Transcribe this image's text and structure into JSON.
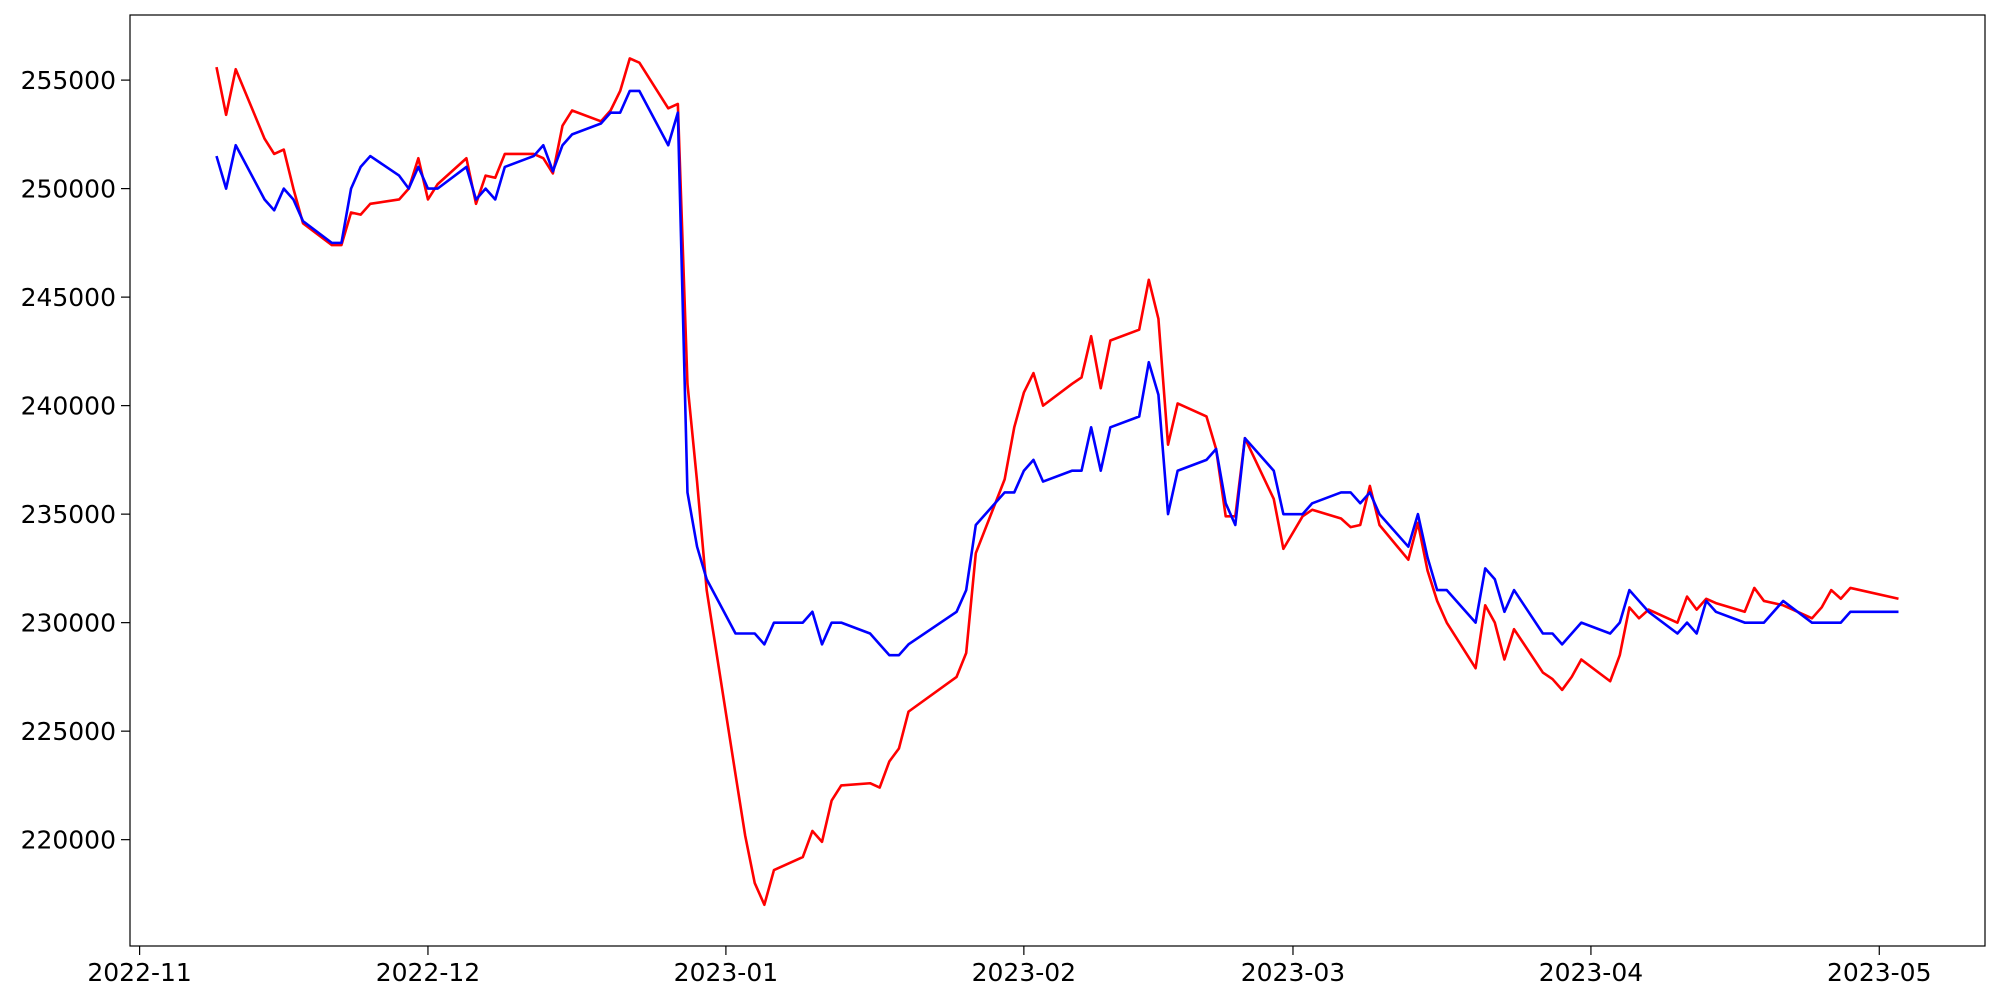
{
  "chart_data": {
    "type": "line",
    "x": [
      "2022-11-09",
      "2022-11-10",
      "2022-11-11",
      "2022-11-14",
      "2022-11-15",
      "2022-11-16",
      "2022-11-17",
      "2022-11-18",
      "2022-11-21",
      "2022-11-22",
      "2022-11-23",
      "2022-11-24",
      "2022-11-25",
      "2022-11-28",
      "2022-11-29",
      "2022-11-30",
      "2022-12-01",
      "2022-12-02",
      "2022-12-05",
      "2022-12-06",
      "2022-12-07",
      "2022-12-08",
      "2022-12-09",
      "2022-12-12",
      "2022-12-13",
      "2022-12-14",
      "2022-12-15",
      "2022-12-16",
      "2022-12-19",
      "2022-12-20",
      "2022-12-21",
      "2022-12-22",
      "2022-12-23",
      "2022-12-26",
      "2022-12-27",
      "2022-12-28",
      "2022-12-29",
      "2022-12-30",
      "2023-01-02",
      "2023-01-03",
      "2023-01-04",
      "2023-01-05",
      "2023-01-06",
      "2023-01-09",
      "2023-01-10",
      "2023-01-11",
      "2023-01-12",
      "2023-01-13",
      "2023-01-16",
      "2023-01-17",
      "2023-01-18",
      "2023-01-19",
      "2023-01-20",
      "2023-01-25",
      "2023-01-26",
      "2023-01-27",
      "2023-01-30",
      "2023-01-31",
      "2023-02-01",
      "2023-02-02",
      "2023-02-03",
      "2023-02-06",
      "2023-02-07",
      "2023-02-08",
      "2023-02-09",
      "2023-02-10",
      "2023-02-13",
      "2023-02-14",
      "2023-02-15",
      "2023-02-16",
      "2023-02-17",
      "2023-02-20",
      "2023-02-21",
      "2023-02-22",
      "2023-02-23",
      "2023-02-24",
      "2023-02-27",
      "2023-02-28",
      "2023-03-02",
      "2023-03-03",
      "2023-03-06",
      "2023-03-07",
      "2023-03-08",
      "2023-03-09",
      "2023-03-10",
      "2023-03-13",
      "2023-03-14",
      "2023-03-15",
      "2023-03-16",
      "2023-03-17",
      "2023-03-20",
      "2023-03-21",
      "2023-03-22",
      "2023-03-23",
      "2023-03-24",
      "2023-03-27",
      "2023-03-28",
      "2023-03-29",
      "2023-03-30",
      "2023-03-31",
      "2023-04-03",
      "2023-04-04",
      "2023-04-05",
      "2023-04-06",
      "2023-04-07",
      "2023-04-10",
      "2023-04-11",
      "2023-04-12",
      "2023-04-13",
      "2023-04-14",
      "2023-04-17",
      "2023-04-18",
      "2023-04-19",
      "2023-04-21",
      "2023-04-24",
      "2023-04-25",
      "2023-04-26",
      "2023-04-27",
      "2023-04-28",
      "2023-05-03"
    ],
    "series": [
      {
        "color": "#ff0000",
        "values": [
          255600,
          253400,
          255500,
          252300,
          251600,
          251800,
          250000,
          248400,
          247400,
          247400,
          248900,
          248800,
          249300,
          249500,
          250000,
          251400,
          249500,
          250200,
          251400,
          249300,
          250600,
          250500,
          251600,
          251600,
          251400,
          250700,
          252900,
          253600,
          253100,
          253600,
          254500,
          256000,
          255800,
          253700,
          253900,
          241000,
          236500,
          231500,
          223000,
          220200,
          218000,
          217000,
          218600,
          219200,
          220400,
          219900,
          221800,
          222500,
          222600,
          222400,
          223600,
          224200,
          225900,
          227500,
          228600,
          233200,
          236600,
          239000,
          240600,
          241500,
          240000,
          241000,
          241300,
          243200,
          240800,
          243000,
          243500,
          245800,
          244000,
          238200,
          240100,
          239500,
          238000,
          234900,
          234900,
          238500,
          235700,
          233400,
          234900,
          235200,
          234800,
          234400,
          234500,
          236300,
          234500,
          232900,
          234600,
          232400,
          231000,
          230000,
          227900,
          230800,
          230000,
          228300,
          229700,
          227700,
          227400,
          226900,
          227500,
          228300,
          227300,
          228500,
          230700,
          230200,
          230600,
          230000,
          231200,
          230600,
          231100,
          230900,
          230500,
          231600,
          231000,
          230800,
          230200,
          230700,
          231500,
          231100,
          231600,
          231100
        ]
      },
      {
        "color": "#0000ff",
        "values": [
          251500,
          250000,
          252000,
          249500,
          249000,
          250000,
          249500,
          248500,
          247500,
          247500,
          250000,
          251000,
          251500,
          250600,
          250000,
          251000,
          250000,
          250000,
          251000,
          249500,
          250000,
          249500,
          251000,
          251500,
          252000,
          250800,
          252000,
          252500,
          253000,
          253500,
          253500,
          254500,
          254500,
          252000,
          253500,
          236000,
          233500,
          232000,
          229500,
          229500,
          229500,
          229000,
          230000,
          230000,
          230500,
          229000,
          230000,
          230000,
          229500,
          229000,
          228500,
          228500,
          229000,
          230500,
          231500,
          234500,
          236000,
          236000,
          237000,
          237500,
          236500,
          237000,
          237000,
          239000,
          237000,
          239000,
          239500,
          242000,
          240500,
          235000,
          237000,
          237500,
          238000,
          235500,
          234500,
          238500,
          237000,
          235000,
          235000,
          235500,
          236000,
          236000,
          235500,
          236000,
          235000,
          233500,
          235000,
          233000,
          231500,
          231500,
          230000,
          232500,
          232000,
          230500,
          231500,
          229500,
          229500,
          229000,
          229500,
          230000,
          229500,
          230000,
          231500,
          231000,
          230500,
          229500,
          230000,
          229500,
          231000,
          230500,
          230000,
          230000,
          230000,
          231000,
          230000,
          230000,
          230000,
          230000,
          230500,
          230500
        ]
      }
    ],
    "xlim": [
      "2022-10-31",
      "2023-05-12"
    ],
    "xticks": [
      {
        "value": "2022-11-01",
        "label": "2022-11"
      },
      {
        "value": "2022-12-01",
        "label": "2022-12"
      },
      {
        "value": "2023-01-01",
        "label": "2023-01"
      },
      {
        "value": "2023-02-01",
        "label": "2023-02"
      },
      {
        "value": "2023-03-01",
        "label": "2023-03"
      },
      {
        "value": "2023-04-01",
        "label": "2023-04"
      },
      {
        "value": "2023-05-01",
        "label": "2023-05"
      }
    ],
    "ylim": [
      215100,
      258000
    ],
    "yticks": [
      220000,
      225000,
      230000,
      235000,
      240000,
      245000,
      250000,
      255000
    ],
    "grid": false
  }
}
